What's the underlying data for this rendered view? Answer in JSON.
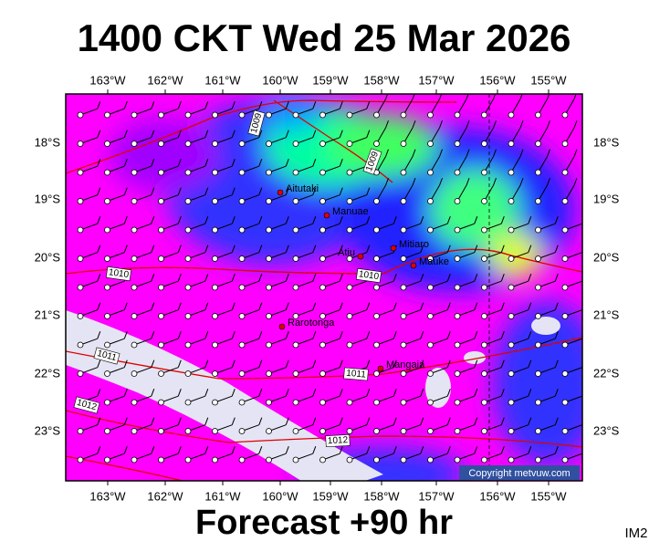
{
  "title": "1400 CKT Wed 25 Mar 2026",
  "longitude_labels": [
    "163°W",
    "162°W",
    "161°W",
    "160°W",
    "159°W",
    "158°W",
    "157°W",
    "156°W",
    "155°W"
  ],
  "latitude_labels": [
    "18°S",
    "19°S",
    "20°S",
    "21°S",
    "22°S",
    "23°S"
  ],
  "places": [
    {
      "name": "Aitutaki"
    },
    {
      "name": "Manuae"
    },
    {
      "name": "Atiu"
    },
    {
      "name": "Mitiaro"
    },
    {
      "name": "Mauke"
    },
    {
      "name": "Rarotonga"
    },
    {
      "name": "Mangaia"
    }
  ],
  "isobar_labels": [
    "1009",
    "1009",
    "1010",
    "1010",
    "1011",
    "1011",
    "1012",
    "1012"
  ],
  "copyright": "Copyright metvuw.com",
  "footer": "Forecast +90 hr",
  "image_id": "IM2"
}
